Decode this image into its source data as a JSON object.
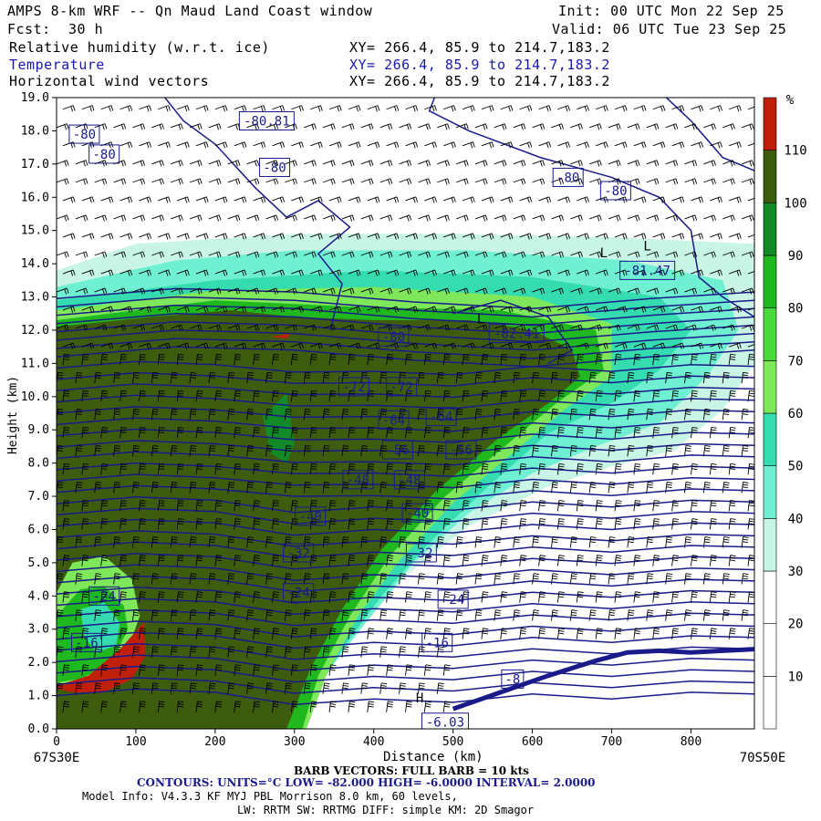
{
  "header": {
    "title": "AMPS 8-km WRF -- Qn Maud Land Coast window",
    "init": "Init: 00 UTC Mon 22 Sep 25",
    "fcst_label": "Fcst:",
    "fcst_value": "30 h",
    "valid": "Valid: 06 UTC Tue 23 Sep 25",
    "fields": [
      {
        "name": "Relative humidity (w.r.t. ice)",
        "xy": "XY= 266.4, 85.9 to 214.7,183.2"
      },
      {
        "name": "Temperature",
        "xy": "XY= 266.4, 85.9 to 214.7,183.2"
      },
      {
        "name": "Horizontal wind vectors",
        "xy": "XY= 266.4, 85.9 to 214.7,183.2"
      }
    ]
  },
  "footer": {
    "barb": "BARB VECTORS: FULL BARB = 10 kts",
    "contours": "CONTOURS: UNITS=°C LOW= -82.000 HIGH= -6.0000 INTERVAL= 2.0000",
    "model_info": "Model Info: V4.3.3 KF MYJ PBL Morrison 8.0 km, 60 levels,",
    "physics": "LW: RRTM SW: RRTMG DIFF: simple KM: 2D Smagor"
  },
  "colors": {
    "rh_30": "#c8f5e6",
    "rh_40": "#6ff0d2",
    "rh_50": "#35dcb0",
    "rh_60": "#7ee85a",
    "rh_70": "#4ada3a",
    "rh_80": "#1fb81f",
    "rh_90": "#128a28",
    "rh_100": "#3d5c0e",
    "rh_110": "#c0200a",
    "contour": "#1a1a8a",
    "barb": "#000000"
  },
  "chart_data": {
    "type": "cross-section",
    "xlabel": "Distance (km)",
    "ylabel": "Height (km)",
    "xlim": [
      0,
      880
    ],
    "ylim": [
      0,
      19
    ],
    "x_ticks": [
      0,
      100,
      200,
      300,
      400,
      500,
      600,
      700,
      800
    ],
    "y_ticks": [
      "0.0",
      "1.0",
      "2.0",
      "3.0",
      "4.0",
      "5.0",
      "6.0",
      "7.0",
      "8.0",
      "9.0",
      "10.0",
      "11.0",
      "12.0",
      "13.0",
      "14.0",
      "15.0",
      "16.0",
      "17.0",
      "18.0",
      "19.0"
    ],
    "x_endpoints": {
      "left": "67S30E",
      "right": "70S50E"
    },
    "colorbar": {
      "unit": "%",
      "levels": [
        10,
        20,
        30,
        40,
        50,
        60,
        70,
        80,
        90,
        100,
        110
      ]
    },
    "contour_labels": [
      {
        "text": "-80.81",
        "x": 265,
        "y": 18.3
      },
      {
        "text": "-80",
        "x": 35,
        "y": 17.9
      },
      {
        "text": "-80",
        "x": 60,
        "y": 17.3
      },
      {
        "text": "-80",
        "x": 275,
        "y": 16.9
      },
      {
        "text": "-80",
        "x": 645,
        "y": 16.6
      },
      {
        "text": "-80",
        "x": 705,
        "y": 16.2
      },
      {
        "text": "-81.47",
        "x": 745,
        "y": 13.8
      },
      {
        "text": "-82.41",
        "x": 580,
        "y": 11.9
      },
      {
        "text": "-80",
        "x": 425,
        "y": 11.8
      },
      {
        "text": "-72",
        "x": 375,
        "y": 10.3
      },
      {
        "text": "-72",
        "x": 435,
        "y": 10.3
      },
      {
        "text": "-64",
        "x": 425,
        "y": 9.3
      },
      {
        "text": "-64",
        "x": 485,
        "y": 9.4
      },
      {
        "text": "-56",
        "x": 430,
        "y": 8.4
      },
      {
        "text": "-56",
        "x": 510,
        "y": 8.4
      },
      {
        "text": "-48",
        "x": 380,
        "y": 7.5
      },
      {
        "text": "-48",
        "x": 445,
        "y": 7.5
      },
      {
        "text": "-40",
        "x": 320,
        "y": 6.4
      },
      {
        "text": "-40",
        "x": 455,
        "y": 6.5
      },
      {
        "text": "-32",
        "x": 305,
        "y": 5.3
      },
      {
        "text": "-32",
        "x": 460,
        "y": 5.3
      },
      {
        "text": "-24",
        "x": 60,
        "y": 4.0
      },
      {
        "text": "-24",
        "x": 305,
        "y": 4.1
      },
      {
        "text": "-24",
        "x": 500,
        "y": 3.9
      },
      {
        "text": "-16",
        "x": 480,
        "y": 2.6
      },
      {
        "text": "-16",
        "x": 38,
        "y": 2.6
      },
      {
        "text": "-8",
        "x": 575,
        "y": 1.5
      },
      {
        "text": "-6.03",
        "x": 490,
        "y": 0.2
      }
    ],
    "extrema_markers": [
      {
        "text": "L",
        "x": 535,
        "y": 12.2
      },
      {
        "text": "L",
        "x": 745,
        "y": 14.4
      },
      {
        "text": "L",
        "x": 690,
        "y": 14.2
      },
      {
        "text": "H",
        "x": 458,
        "y": 0.8
      }
    ],
    "terrain": [
      [
        500,
        0.6
      ],
      [
        560,
        1.1
      ],
      [
        620,
        1.6
      ],
      [
        680,
        2.05
      ],
      [
        720,
        2.3
      ],
      [
        760,
        2.35
      ],
      [
        800,
        2.3
      ],
      [
        840,
        2.35
      ],
      [
        880,
        2.4
      ]
    ]
  }
}
